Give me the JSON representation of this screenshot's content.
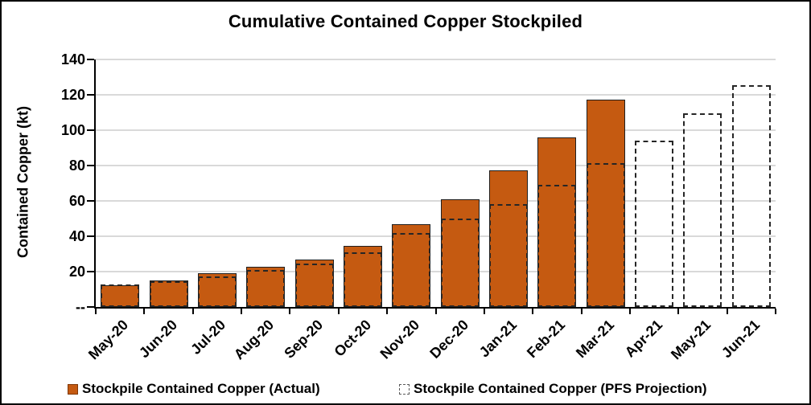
{
  "title": "Cumulative Contained Copper Stockpiled",
  "colors": {
    "bar_fill": "#C55A11",
    "bar_border": "#1F1F1F",
    "projection_dash": "#262626",
    "gridline": "#D9D9D9",
    "axis": "#000000",
    "background": "#FFFFFF",
    "frame_border": "#000000",
    "legend_actual_marker_border": "#7F3705",
    "legend_projection_marker_border": "#595959"
  },
  "chart_data": {
    "type": "bar",
    "title": "Cumulative Contained Copper Stockpiled",
    "xlabel": "",
    "ylabel": "Contained Copper (kt)",
    "ylim": [
      0,
      140
    ],
    "ytick_interval": 20,
    "ytick_labels": [
      "--",
      "20",
      "40",
      "60",
      "80",
      "100",
      "120",
      "140"
    ],
    "grid": true,
    "legend_position": "bottom",
    "x_label_rotation_deg": 45,
    "categories": [
      "May-20",
      "Jun-20",
      "Jul-20",
      "Aug-20",
      "Sep-20",
      "Oct-20",
      "Nov-20",
      "Dec-20",
      "Jan-21",
      "Feb-21",
      "Mar-21",
      "Apr-21",
      "May-21",
      "Jun-21"
    ],
    "series": [
      {
        "name": "Stockpile Contained Copper (Actual)",
        "style": "solid-fill-orange",
        "values": [
          12.4,
          15.0,
          19.0,
          22.7,
          27.0,
          34.5,
          47.0,
          61.0,
          77.3,
          96.0,
          117.5,
          null,
          null,
          null
        ]
      },
      {
        "name": "Stockpile Contained Copper (PFS Projection)",
        "style": "dashed-outline",
        "values": [
          12.8,
          14.4,
          17.5,
          21.0,
          24.5,
          31.0,
          42.0,
          50.0,
          58.0,
          69.0,
          81.5,
          94.0,
          109.5,
          125.5
        ]
      }
    ]
  },
  "legend": {
    "actual_label": "Stockpile Contained Copper (Actual)",
    "projection_label": "Stockpile Contained Copper (PFS Projection)"
  }
}
